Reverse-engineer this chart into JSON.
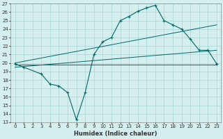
{
  "xlabel": "Humidex (Indice chaleur)",
  "background_color": "#d5eeee",
  "grid_color": "#aad4d4",
  "line_color": "#006666",
  "xlim": [
    -0.5,
    23.5
  ],
  "ylim": [
    13,
    27
  ],
  "xticks": [
    0,
    1,
    2,
    3,
    4,
    5,
    6,
    7,
    8,
    9,
    10,
    11,
    12,
    13,
    14,
    15,
    16,
    17,
    18,
    19,
    20,
    21,
    22,
    23
  ],
  "yticks": [
    13,
    14,
    15,
    16,
    17,
    18,
    19,
    20,
    21,
    22,
    23,
    24,
    25,
    26,
    27
  ],
  "line1_x": [
    0,
    1,
    3,
    4,
    5,
    6,
    7,
    8,
    9,
    10,
    11,
    12,
    13,
    14,
    15,
    16,
    17,
    18,
    19,
    20,
    21,
    22,
    23
  ],
  "line1_y": [
    19.9,
    19.5,
    18.7,
    17.5,
    17.3,
    16.5,
    13.3,
    16.5,
    21.0,
    22.5,
    23.0,
    25.0,
    25.5,
    26.1,
    26.5,
    26.8,
    25.0,
    24.5,
    24.0,
    22.8,
    21.5,
    21.5,
    19.9
  ],
  "line2_x": [
    0,
    23
  ],
  "line2_y": [
    20.0,
    24.5
  ],
  "line3_x": [
    0,
    23
  ],
  "line3_y": [
    19.5,
    21.5
  ],
  "line4_x": [
    0,
    23
  ],
  "line4_y": [
    19.8,
    19.8
  ]
}
